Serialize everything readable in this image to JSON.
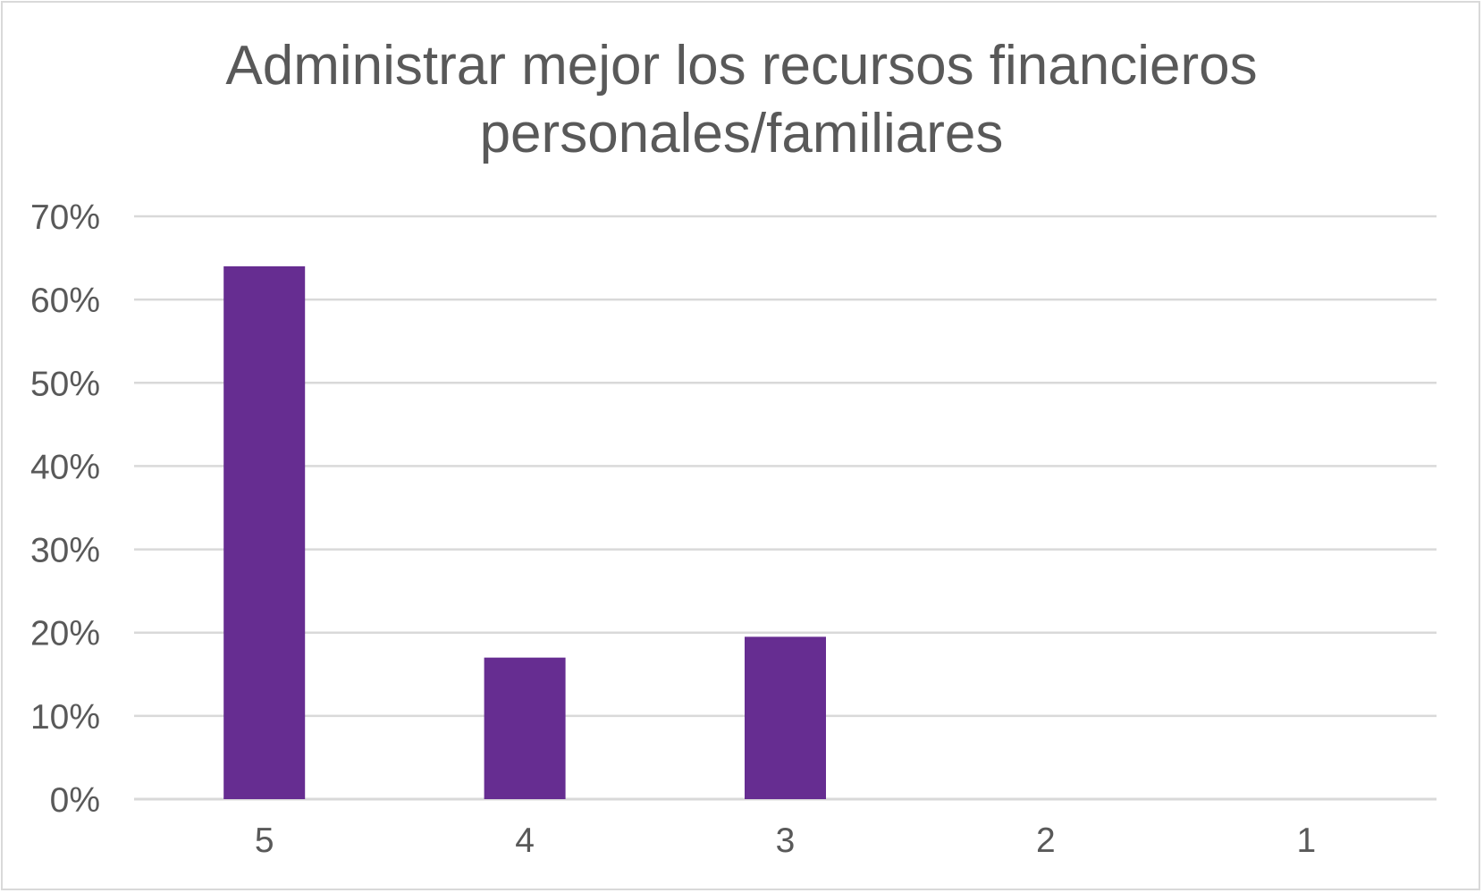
{
  "chart_data": {
    "type": "bar",
    "title_lines": [
      "Administrar mejor los recursos financieros",
      "personales/familiares"
    ],
    "categories": [
      "5",
      "4",
      "3",
      "2",
      "1"
    ],
    "values": [
      0.64,
      0.17,
      0.195,
      0,
      0
    ],
    "ylim": [
      0,
      0.7
    ],
    "yticks": [
      "0%",
      "10%",
      "20%",
      "30%",
      "40%",
      "50%",
      "60%",
      "70%"
    ],
    "xlabel": "",
    "ylabel": "",
    "grid": true,
    "legend": "none",
    "bar_color": "#662d91",
    "grid_color": "#d9d9d9",
    "text_color": "#595959"
  }
}
